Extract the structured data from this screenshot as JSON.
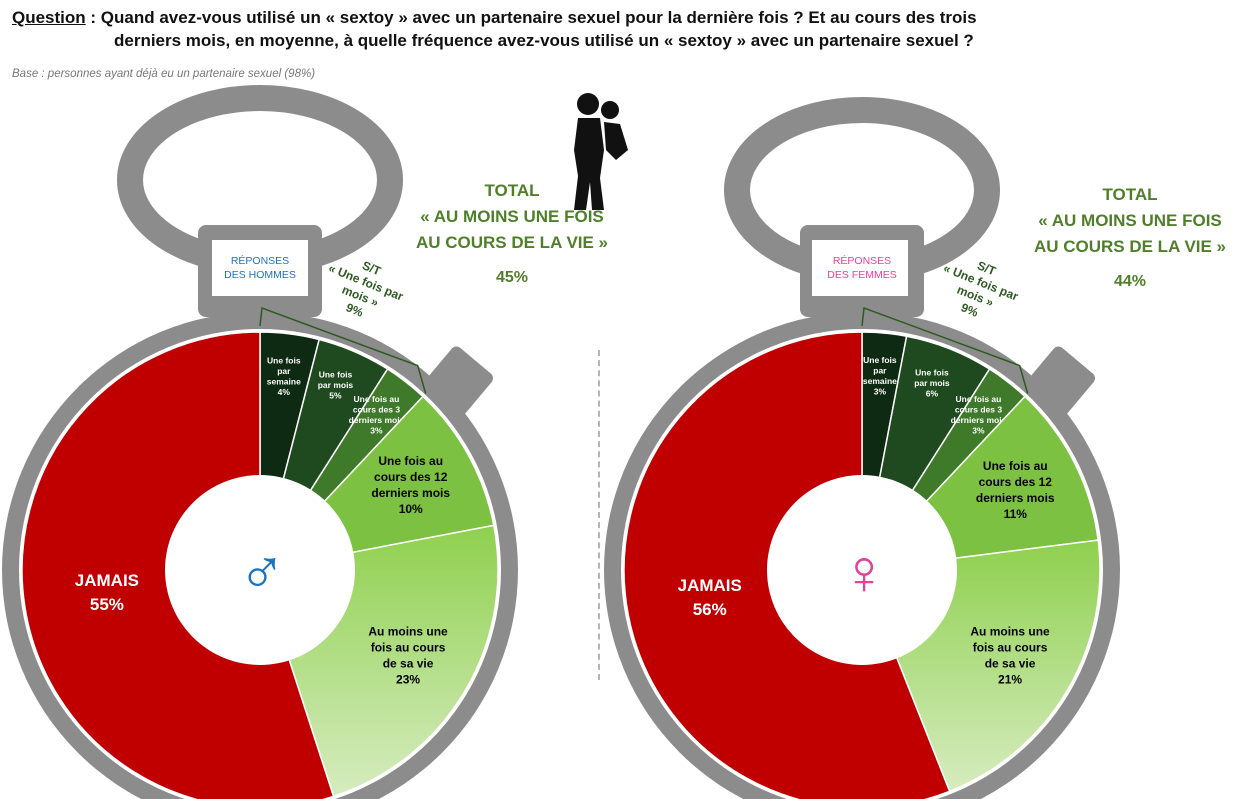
{
  "question": {
    "label": "Question",
    "line1": " : Quand avez-vous utilisé un « sextoy » avec un partenaire sexuel pour la dernière fois ? Et au cours des trois",
    "line2": "derniers mois, en moyenne, à quelle fréquence avez-vous utilisé un « sextoy » avec un partenaire sexuel ?"
  },
  "base_note": "Base : personnes ayant déjà eu un partenaire sexuel (98%)",
  "colors": {
    "jamais": "#c00000",
    "weekly": "#0f2a12",
    "monthly": "#1f4a1f",
    "three_months": "#3f7a2a",
    "twelve_months": "#7cc142",
    "lifetime_top": "#8fd04e",
    "lifetime_bottom": "#d6ecc0",
    "frame": "#8c8c8c",
    "total_text": "#4f7f2a",
    "men_accent": "#1e73be",
    "women_accent": "#e0449a"
  },
  "chart_data": [
    {
      "type": "pie",
      "id": "men",
      "title": "RÉPONSES DES HOMMES",
      "center_symbol": "♂",
      "slices": [
        {
          "key": "weekly",
          "label": "Une fois par semaine",
          "value": 4,
          "display": "4%"
        },
        {
          "key": "monthly",
          "label": "Une fois par mois",
          "value": 5,
          "display": "5%"
        },
        {
          "key": "three_months",
          "label": "Une fois au cours des 3 derniers mois",
          "value": 3,
          "display": "3%"
        },
        {
          "key": "twelve_months",
          "label": "Une fois au cours des 12 derniers mois",
          "value": 10,
          "display": "10%"
        },
        {
          "key": "lifetime",
          "label": "Au moins une fois au cours de sa vie",
          "value": 23,
          "display": "23%"
        },
        {
          "key": "jamais",
          "label": "JAMAIS",
          "value": 55,
          "display": "55%"
        }
      ],
      "subtotal": {
        "label": "S/T « Une fois par mois »",
        "value": "9%"
      },
      "total": {
        "title": "TOTAL",
        "line1": "« AU MOINS UNE FOIS",
        "line2": "AU COURS DE LA VIE »",
        "value": "45%"
      }
    },
    {
      "type": "pie",
      "id": "women",
      "title": "RÉPONSES DES FEMMES",
      "center_symbol": "♀",
      "slices": [
        {
          "key": "weekly",
          "label": "Une fois par semaine",
          "value": 3,
          "display": "3%"
        },
        {
          "key": "monthly",
          "label": "Une fois par mois",
          "value": 6,
          "display": "6%"
        },
        {
          "key": "three_months",
          "label": "Une fois au cours des 3 derniers mois",
          "value": 3,
          "display": "3%"
        },
        {
          "key": "twelve_months",
          "label": "Une fois au cours des 12 derniers mois",
          "value": 11,
          "display": "11%"
        },
        {
          "key": "lifetime",
          "label": "Au moins une fois au cours de sa vie",
          "value": 21,
          "display": "21%"
        },
        {
          "key": "jamais",
          "label": "JAMAIS",
          "value": 56,
          "display": "56%"
        }
      ],
      "subtotal": {
        "label": "S/T « Une fois par mois »",
        "value": "9%"
      },
      "total": {
        "title": "TOTAL",
        "line1": "« AU MOINS UNE FOIS",
        "line2": "AU COURS DE LA VIE »",
        "value": "44%"
      }
    }
  ]
}
